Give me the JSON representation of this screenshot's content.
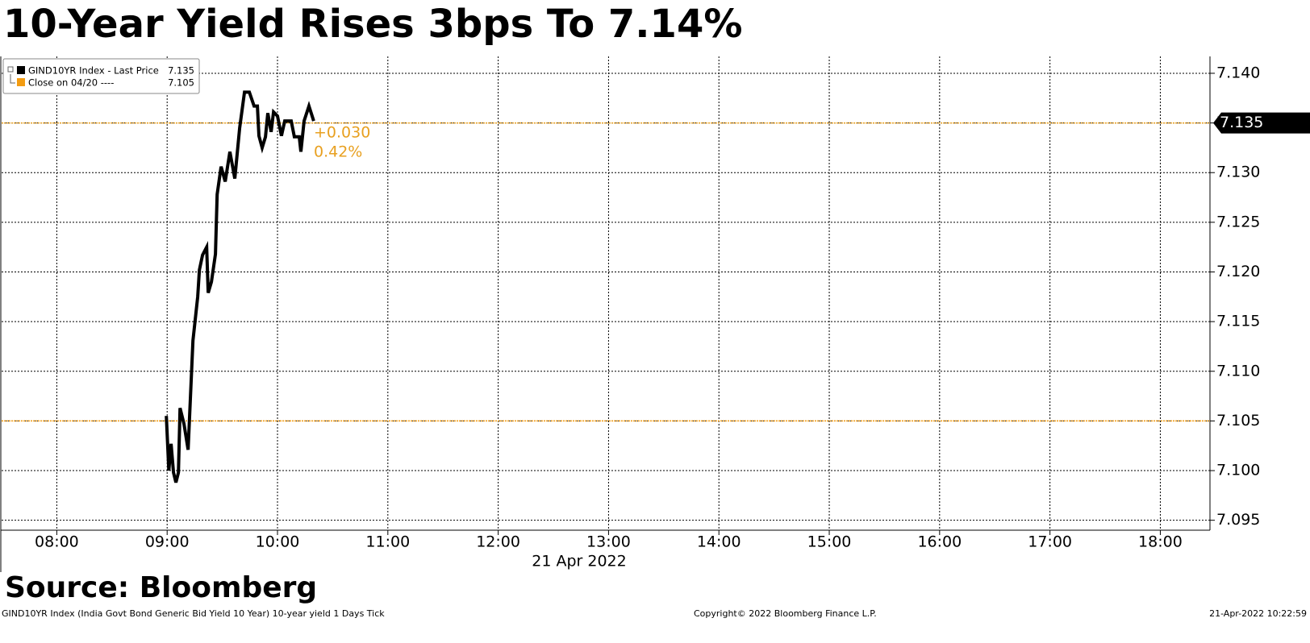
{
  "chart_data": {
    "type": "line",
    "title": "10-Year Yield Rises 3bps To 7.14%",
    "source": "Source: Bloomberg",
    "x_label": "21 Apr 2022",
    "footer_left": "GIND10YR Index (India Govt Bond Generic Bid Yield 10 Year) 10-year yield 1 Days  Tick",
    "footer_center": "Copyright© 2022 Bloomberg Finance L.P.",
    "footer_right": "21-Apr-2022 10:22:59",
    "x": [
      8.993,
      9.015,
      9.036,
      9.058,
      9.08,
      9.102,
      9.117,
      9.153,
      9.19,
      9.234,
      9.277,
      9.292,
      9.321,
      9.358,
      9.372,
      9.401,
      9.438,
      9.453,
      9.489,
      9.526,
      9.569,
      9.613,
      9.657,
      9.701,
      9.745,
      9.788,
      9.818,
      9.832,
      9.861,
      9.891,
      9.912,
      9.942,
      9.964,
      10.0,
      10.036,
      10.066,
      10.124,
      10.153,
      10.197,
      10.212,
      10.241,
      10.285,
      10.328
    ],
    "series": [
      {
        "name": "GIND10YR Index - Last Price",
        "color": "#000000",
        "last": 7.135,
        "last_line_color": "#e8a020",
        "values": [
          7.1055,
          7.1,
          7.1027,
          7.0998,
          7.0988,
          7.0998,
          7.1063,
          7.1047,
          7.1021,
          7.1131,
          7.1175,
          7.1202,
          7.1217,
          7.1225,
          7.1179,
          7.119,
          7.1218,
          7.1278,
          7.1306,
          7.1291,
          7.1321,
          7.1294,
          7.1345,
          7.1381,
          7.1381,
          7.1367,
          7.1367,
          7.1337,
          7.1325,
          7.1336,
          7.136,
          7.1341,
          7.1361,
          7.1357,
          7.1337,
          7.1352,
          7.1352,
          7.1336,
          7.1336,
          7.1321,
          7.1352,
          7.1367,
          7.1352
        ]
      }
    ],
    "close": {
      "name": "Close on 04/20 ----",
      "value": 7.105,
      "color": "#f39c12"
    },
    "annotations": [
      "+0.030",
      "0.42%"
    ],
    "annotation_color": "#e8a020",
    "xlim": [
      7.5,
      18.45
    ],
    "xticks": [
      {
        "value": 8,
        "label": "08:00"
      },
      {
        "value": 9,
        "label": "09:00"
      },
      {
        "value": 10,
        "label": "10:00"
      },
      {
        "value": 11,
        "label": "11:00"
      },
      {
        "value": 12,
        "label": "12:00"
      },
      {
        "value": 13,
        "label": "13:00"
      },
      {
        "value": 14,
        "label": "14:00"
      },
      {
        "value": 15,
        "label": "15:00"
      },
      {
        "value": 16,
        "label": "16:00"
      },
      {
        "value": 17,
        "label": "17:00"
      },
      {
        "value": 18,
        "label": "18:00"
      }
    ],
    "ylim": [
      7.094,
      7.1417
    ],
    "yticks": [
      7.095,
      {
        "value": 7.1,
        "label": "7.100"
      },
      7.105,
      {
        "value": 7.11,
        "label": "7.110"
      },
      7.115,
      {
        "value": 7.12,
        "label": "7.120"
      },
      7.125,
      {
        "value": 7.13,
        "label": "7.130"
      },
      7.135,
      {
        "value": 7.14,
        "label": "7.140"
      }
    ],
    "grid": true
  }
}
